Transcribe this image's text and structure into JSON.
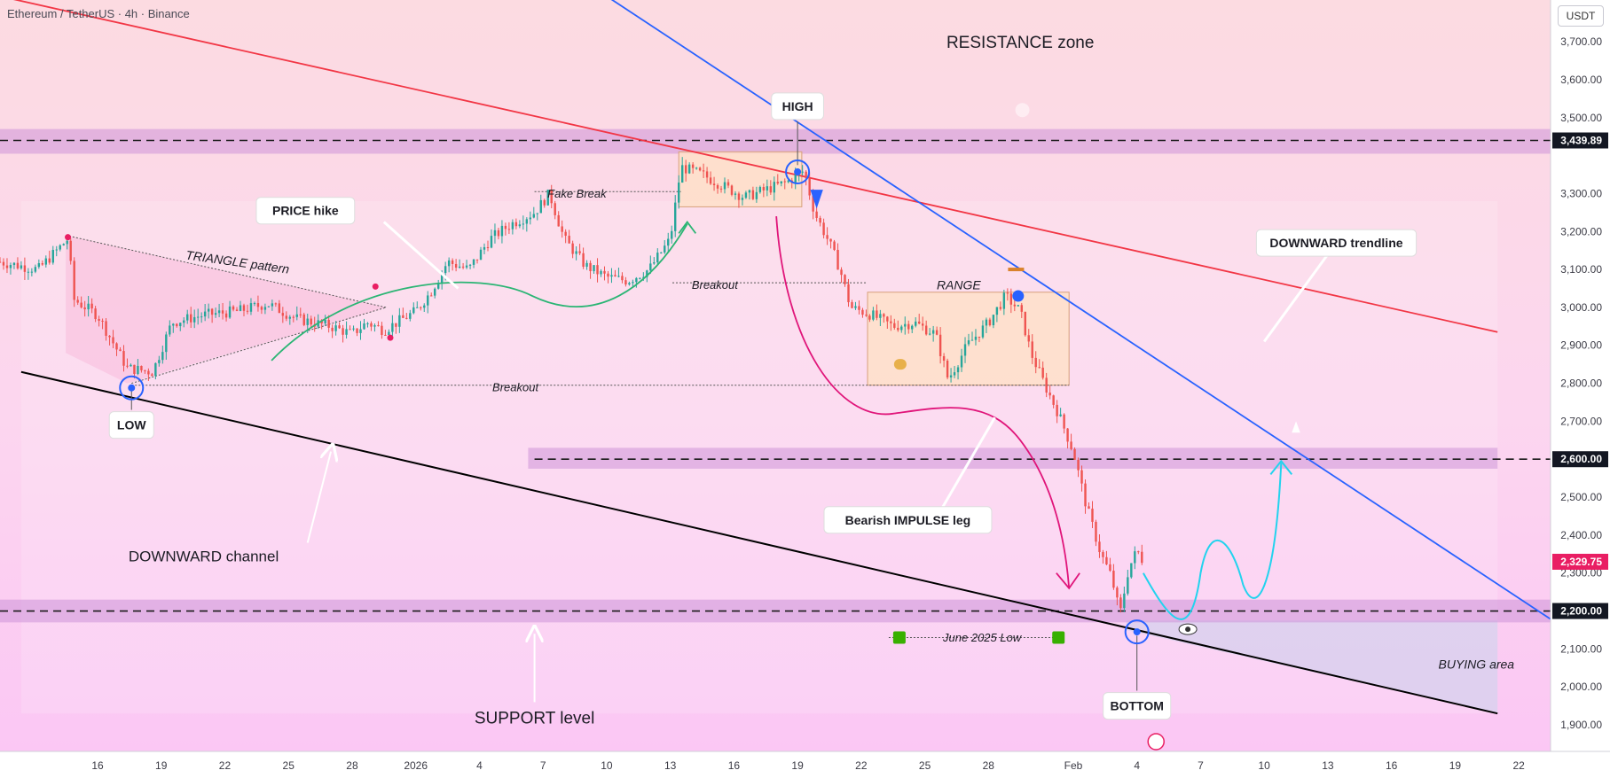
{
  "header": {
    "title": "Ethereum / TetherUS · 4h · Binance"
  },
  "currency_button": "USDT",
  "colors": {
    "up": "#26a69a",
    "down": "#ef5350",
    "resistance_line": "#f23645",
    "trendline": "#2962ff",
    "channel_line": "#000000",
    "zone": "#ce93d8",
    "current_price": "#e91e63"
  },
  "chart_data": {
    "type": "candlestick",
    "title": "Ethereum / TetherUS · 4h · Binance",
    "y_axis": {
      "position": "right",
      "ticks": [
        3700,
        3600,
        3500,
        3300,
        3200,
        3100,
        3000,
        2900,
        2800,
        2700,
        2500,
        2400,
        2300,
        2100,
        2000,
        1900
      ],
      "tick_labels": [
        "3,700.00",
        "3,600.00",
        "3,500.00",
        "3,300.00",
        "3,200.00",
        "3,100.00",
        "3,000.00",
        "2,900.00",
        "2,800.00",
        "2,700.00",
        "2,500.00",
        "2,400.00",
        "2,300.00",
        "2,100.00",
        "2,000.00",
        "1,900.00"
      ],
      "range": [
        1830,
        3810
      ],
      "highlighted_labels": [
        {
          "value": 3439.89,
          "label": "3,439.89"
        },
        {
          "value": 2600,
          "label": "2,600.00"
        },
        {
          "value": 2200,
          "label": "2,200.00"
        }
      ],
      "current_price": {
        "value": 2329.75,
        "label": "2,329.75"
      }
    },
    "x_axis": {
      "ticks": [
        {
          "day": 16,
          "label": "16"
        },
        {
          "day": 19,
          "label": "19"
        },
        {
          "day": 22,
          "label": "22"
        },
        {
          "day": 25,
          "label": "25"
        },
        {
          "day": 28,
          "label": "28"
        },
        {
          "day": 31,
          "label": "2026"
        },
        {
          "day": 34,
          "label": "4"
        },
        {
          "day": 37,
          "label": "7"
        },
        {
          "day": 40,
          "label": "10"
        },
        {
          "day": 43,
          "label": "13"
        },
        {
          "day": 46,
          "label": "16"
        },
        {
          "day": 49,
          "label": "19"
        },
        {
          "day": 52,
          "label": "22"
        },
        {
          "day": 55,
          "label": "25"
        },
        {
          "day": 58,
          "label": "28"
        },
        {
          "day": 62,
          "label": "Feb"
        },
        {
          "day": 65,
          "label": "4"
        },
        {
          "day": 68,
          "label": "7"
        },
        {
          "day": 71,
          "label": "10"
        },
        {
          "day": 74,
          "label": "13"
        },
        {
          "day": 77,
          "label": "16"
        },
        {
          "day": 80,
          "label": "19"
        },
        {
          "day": 83,
          "label": "22"
        }
      ],
      "range": [
        11.4,
        84.5
      ],
      "note": "day index counted from Dec 1, 2025"
    },
    "price_path": [
      [
        11.4,
        3120
      ],
      [
        13.2,
        3100
      ],
      [
        14.6,
        3180
      ],
      [
        14.9,
        3020
      ],
      [
        16.0,
        2980
      ],
      [
        17.4,
        2840
      ],
      [
        18.6,
        2830
      ],
      [
        19.5,
        2960
      ],
      [
        21.0,
        2980
      ],
      [
        22.6,
        2990
      ],
      [
        24.0,
        3010
      ],
      [
        25.4,
        2970
      ],
      [
        27.0,
        2950
      ],
      [
        28.0,
        2930
      ],
      [
        28.7,
        2960
      ],
      [
        29.5,
        2940
      ],
      [
        31.0,
        2990
      ],
      [
        31.7,
        3040
      ],
      [
        32.5,
        3120
      ],
      [
        33.5,
        3100
      ],
      [
        34.5,
        3180
      ],
      [
        35.5,
        3220
      ],
      [
        36.6,
        3250
      ],
      [
        37.3,
        3300
      ],
      [
        38.0,
        3180
      ],
      [
        39.0,
        3110
      ],
      [
        40.0,
        3080
      ],
      [
        41.0,
        3070
      ],
      [
        42.0,
        3100
      ],
      [
        43.0,
        3180
      ],
      [
        43.5,
        3370
      ],
      [
        44.5,
        3350
      ],
      [
        45.5,
        3320
      ],
      [
        46.5,
        3290
      ],
      [
        47.5,
        3310
      ],
      [
        48.5,
        3330
      ],
      [
        49.3,
        3360
      ],
      [
        49.8,
        3250
      ],
      [
        50.5,
        3170
      ],
      [
        51.0,
        3100
      ],
      [
        51.5,
        3000
      ],
      [
        52.5,
        2980
      ],
      [
        53.5,
        2950
      ],
      [
        54.5,
        2960
      ],
      [
        55.5,
        2930
      ],
      [
        56.1,
        2810
      ],
      [
        57.0,
        2900
      ],
      [
        58.0,
        2960
      ],
      [
        58.8,
        3030
      ],
      [
        59.5,
        2990
      ],
      [
        60.0,
        2880
      ],
      [
        60.7,
        2790
      ],
      [
        61.3,
        2720
      ],
      [
        62.0,
        2620
      ],
      [
        62.6,
        2480
      ],
      [
        63.3,
        2350
      ],
      [
        63.8,
        2290
      ],
      [
        64.2,
        2190
      ],
      [
        64.6,
        2310
      ],
      [
        65.0,
        2360
      ],
      [
        65.3,
        2329.75
      ]
    ],
    "levels": [
      {
        "value": 3439.89,
        "zone": [
          3405,
          3470
        ],
        "style": "dashed"
      },
      {
        "value": 2600,
        "zone": [
          2575,
          2630
        ],
        "style": "dashed"
      },
      {
        "value": 2200,
        "zone": [
          2170,
          2230
        ],
        "style": "dashed"
      }
    ],
    "lines": [
      {
        "name": "resistance",
        "points": [
          [
            11.4,
            3820
          ],
          [
            82,
            2935
          ]
        ]
      },
      {
        "name": "downward-trendline",
        "points": [
          [
            40,
            3820
          ],
          [
            84.6,
            2175
          ]
        ]
      },
      {
        "name": "channel-support",
        "points": [
          [
            12.4,
            2830
          ],
          [
            82,
            1930
          ]
        ]
      }
    ],
    "boxes": [
      {
        "name": "fake-break-box",
        "x": [
          43.4,
          49.2
        ],
        "y": [
          3265,
          3410
        ]
      },
      {
        "name": "range-box",
        "x": [
          52.3,
          61.8
        ],
        "y": [
          2795,
          3040
        ]
      }
    ],
    "annotations": [
      {
        "text": "RESISTANCE zone",
        "day": 59.5,
        "price": 3700,
        "style": "plain-large"
      },
      {
        "text": "HIGH",
        "day": 49.0,
        "price": 3530,
        "style": "box"
      },
      {
        "text": "PRICE hike",
        "day": 25.8,
        "price": 3255,
        "style": "box"
      },
      {
        "text": "TRIANGLE pattern",
        "day": 22.6,
        "price": 3120,
        "style": "italic"
      },
      {
        "text": "Fake Break",
        "day": 38.6,
        "price": 3300,
        "style": "italic-small"
      },
      {
        "text": "Breakout",
        "day": 45.1,
        "price": 3060,
        "style": "italic-small"
      },
      {
        "text": "RANGE",
        "day": 56.6,
        "price": 3060,
        "style": "italic"
      },
      {
        "text": "DOWNWARD trendline",
        "day": 74.4,
        "price": 3170,
        "style": "box"
      },
      {
        "text": "Breakout",
        "day": 35.7,
        "price": 2790,
        "style": "italic-small"
      },
      {
        "text": "LOW",
        "day": 17.6,
        "price": 2690,
        "style": "box"
      },
      {
        "text": "Bearish IMPULSE leg",
        "day": 54.2,
        "price": 2440,
        "style": "box"
      },
      {
        "text": "DOWNWARD channel",
        "day": 21.0,
        "price": 2345,
        "style": "plain"
      },
      {
        "text": "June 2025 Low",
        "day": 57.7,
        "price": 2130,
        "style": "italic-small"
      },
      {
        "text": "BUYING area",
        "day": 81.0,
        "price": 2060,
        "style": "italic"
      },
      {
        "text": "BOTTOM",
        "day": 65.0,
        "price": 1950,
        "style": "box"
      },
      {
        "text": "SUPPORT level",
        "day": 36.6,
        "price": 1920,
        "style": "plain-large"
      }
    ]
  }
}
